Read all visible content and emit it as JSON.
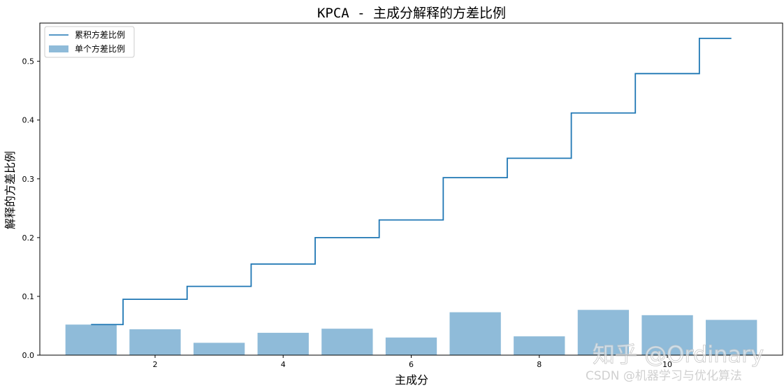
{
  "chart_data": {
    "type": "bar",
    "title": "KPCA - 主成分解释的方差比例",
    "xlabel": "主成分",
    "ylabel": "解释的方差比例",
    "xlim": [
      0.2,
      11.8
    ],
    "ylim": [
      0,
      0.565
    ],
    "xticks": [
      2,
      4,
      6,
      8,
      10
    ],
    "yticks": [
      0.0,
      0.1,
      0.2,
      0.3,
      0.4,
      0.5
    ],
    "legend_position": "top-left",
    "grid": false,
    "x": [
      1,
      2,
      3,
      4,
      5,
      6,
      7,
      8,
      9,
      10,
      11
    ],
    "series": [
      {
        "name": "累积方差比例",
        "kind": "step",
        "color": "#1f77b4",
        "values": [
          0.052,
          0.095,
          0.117,
          0.155,
          0.2,
          0.23,
          0.302,
          0.335,
          0.412,
          0.479,
          0.539
        ]
      },
      {
        "name": "单个方差比例",
        "kind": "bar",
        "color": "#1f77b4",
        "opacity": 0.5,
        "values": [
          0.052,
          0.044,
          0.021,
          0.038,
          0.045,
          0.03,
          0.073,
          0.032,
          0.077,
          0.068,
          0.06
        ]
      }
    ]
  },
  "watermark": {
    "zhihu": "知乎 @Ordinary",
    "csdn": "CSDN @机器学习与优化算法"
  }
}
